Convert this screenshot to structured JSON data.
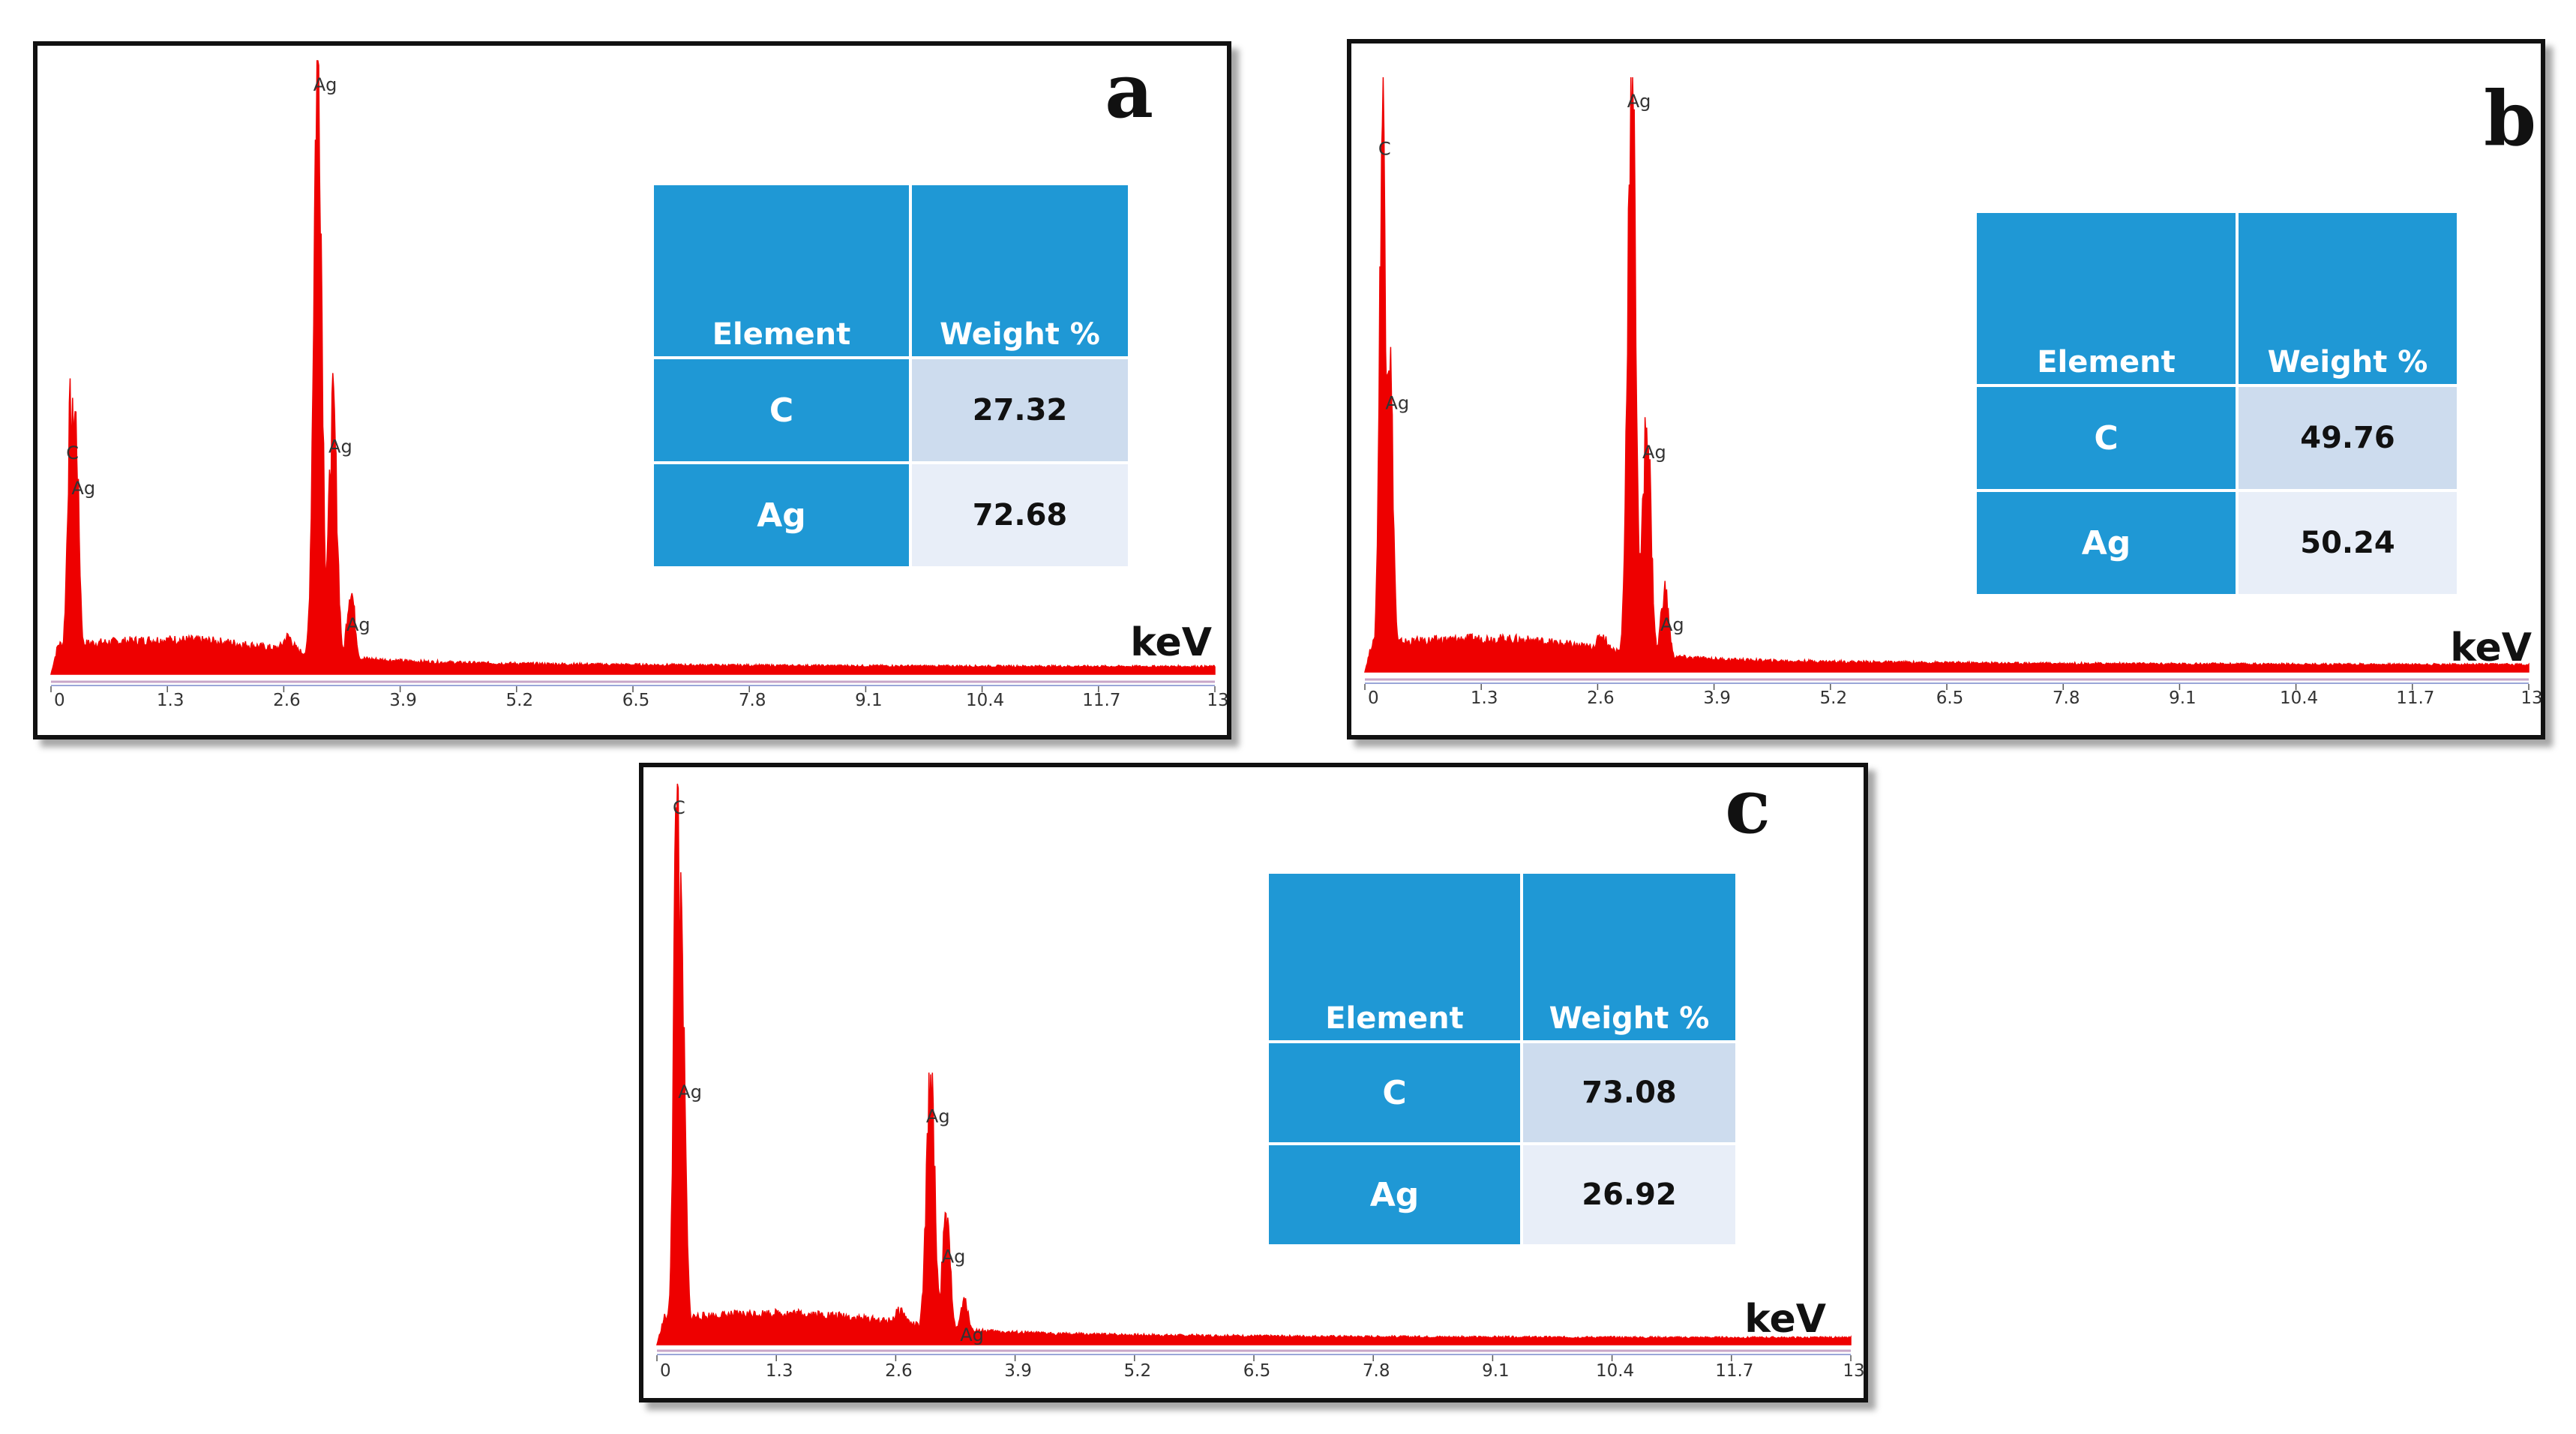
{
  "figure": {
    "xaxis_unit": "keV",
    "tick_labels": [
      "0",
      "1.3",
      "2.6",
      "3.9",
      "5.2",
      "6.5",
      "7.8",
      "9.1",
      "10.4",
      "11.7",
      "13"
    ],
    "table_headers": {
      "element": "Element",
      "weight": "Weight %"
    }
  },
  "chart_data": [
    {
      "type": "area",
      "panel": "a",
      "xlabel": "keV",
      "xlim": [
        0,
        13
      ],
      "ylim": [
        0,
        100
      ],
      "table": [
        {
          "element": "C",
          "weight": "27.32"
        },
        {
          "element": "Ag",
          "weight": "72.68"
        }
      ],
      "peaks": [
        {
          "label": "C",
          "x": 0.22,
          "y": 40
        },
        {
          "label": "Ag",
          "x": 0.28,
          "y": 33
        },
        {
          "label": "Ag",
          "x": 2.98,
          "y": 100
        },
        {
          "label": "Ag",
          "x": 3.15,
          "y": 41
        },
        {
          "label": "Ag",
          "x": 3.35,
          "y": 12
        }
      ],
      "series_color": "#ee0000"
    },
    {
      "type": "area",
      "panel": "b",
      "xlabel": "keV",
      "xlim": [
        0,
        13
      ],
      "ylim": [
        0,
        100
      ],
      "table": [
        {
          "element": "C",
          "weight": "49.76"
        },
        {
          "element": "Ag",
          "weight": "50.24"
        }
      ],
      "peaks": [
        {
          "label": "C",
          "x": 0.2,
          "y": 92
        },
        {
          "label": "Ag",
          "x": 0.28,
          "y": 48
        },
        {
          "label": "Ag",
          "x": 2.98,
          "y": 100
        },
        {
          "label": "Ag",
          "x": 3.15,
          "y": 41
        },
        {
          "label": "Ag",
          "x": 3.35,
          "y": 12
        }
      ],
      "series_color": "#ee0000"
    },
    {
      "type": "area",
      "panel": "c",
      "xlabel": "keV",
      "xlim": [
        0,
        13
      ],
      "ylim": [
        0,
        100
      ],
      "table": [
        {
          "element": "C",
          "weight": "73.08"
        },
        {
          "element": "Ag",
          "weight": "26.92"
        }
      ],
      "peaks": [
        {
          "label": "C",
          "x": 0.22,
          "y": 100
        },
        {
          "label": "Ag",
          "x": 0.28,
          "y": 48
        },
        {
          "label": "Ag",
          "x": 2.98,
          "y": 45
        },
        {
          "label": "Ag",
          "x": 3.15,
          "y": 20
        },
        {
          "label": "Ag",
          "x": 3.35,
          "y": 6
        }
      ],
      "series_color": "#ee0000"
    }
  ]
}
